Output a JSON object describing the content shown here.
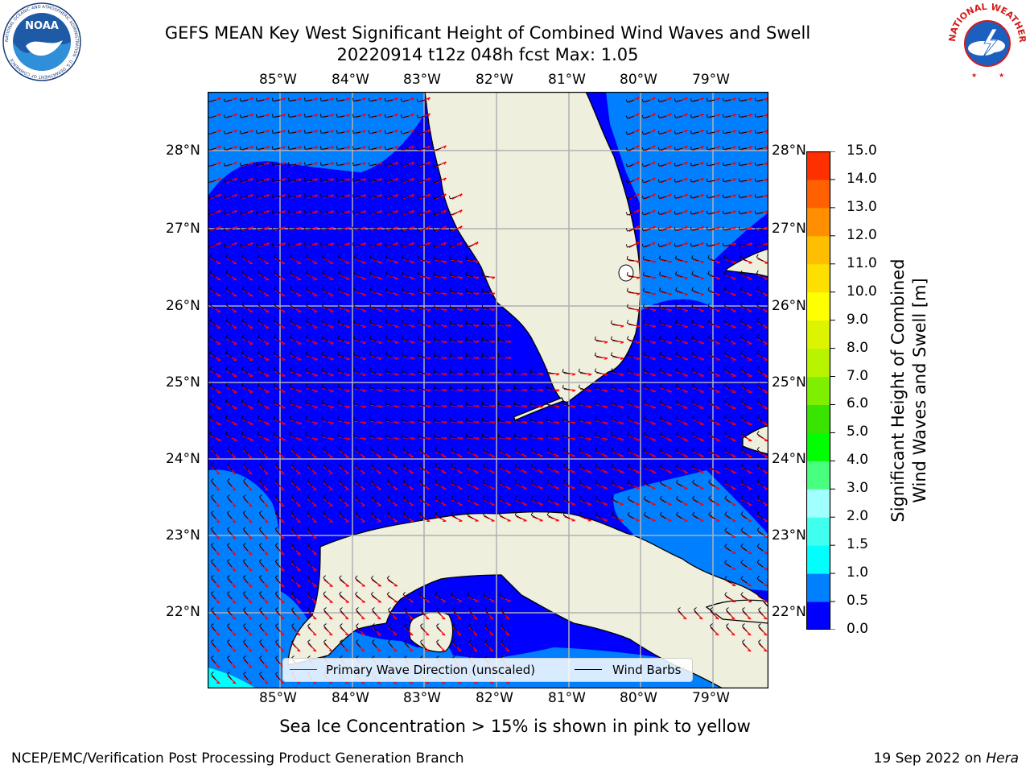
{
  "header": {
    "title_line1": "GEFS MEAN Key West Significant Height of Combined Wind Waves and Swell",
    "title_line2": "20220914 t12z 048h fcst   Max: 1.05"
  },
  "logos": {
    "left": "NOAA",
    "left_ring": "NATIONAL OCEANIC AND ATMOSPHERIC ADMINISTRATION · U.S. DEPARTMENT OF COMMERCE",
    "right_ring": "NATIONAL WEATHER SERVICE"
  },
  "map": {
    "lon_labels": [
      "85°W",
      "84°W",
      "83°W",
      "82°W",
      "81°W",
      "80°W",
      "79°W"
    ],
    "lat_labels": [
      "28°N",
      "27°N",
      "26°N",
      "25°N",
      "24°N",
      "23°N",
      "22°N"
    ],
    "extent": {
      "lon_min": -86.0,
      "lon_max": -78.25,
      "lat_min": 21.0,
      "lat_max": 28.75
    },
    "colors": {
      "ocean_low": "#0000ff",
      "ocean_mid": "#0080ff",
      "ocean_high": "#00ffff",
      "land": "#efefde",
      "wave_arrow": "#ff0000",
      "barb": "#000000",
      "grid": "#b0b0b0"
    }
  },
  "legend": {
    "primary_wave": "Primary Wave Direction (unscaled)",
    "wind_barbs": "Wind Barbs"
  },
  "colorbar": {
    "title_line1": "Significant Height of Combined",
    "title_line2": "Wind Waves and Swell [m]",
    "ticks": [
      "15.0",
      "14.0",
      "13.0",
      "12.0",
      "11.0",
      "10.0",
      "9.0",
      "8.0",
      "7.0",
      "6.0",
      "5.0",
      "4.0",
      "3.0",
      "2.0",
      "1.5",
      "1.0",
      "0.5",
      "0.0"
    ],
    "colors": [
      "#0000ff",
      "#0080ff",
      "#00ffff",
      "#40ffef",
      "#a0ffff",
      "#49ff7f",
      "#00ff00",
      "#39e400",
      "#7fef00",
      "#b8f400",
      "#dcf400",
      "#ffff00",
      "#ffdf00",
      "#ffbf00",
      "#ff8f00",
      "#ff6000",
      "#ff3000"
    ]
  },
  "note": "Sea Ice Concentration > 15% is shown in pink to yellow",
  "footer": {
    "left": "NCEP/EMC/Verification Post Processing Product Generation Branch",
    "right_prefix": "19 Sep 2022 on ",
    "right_host": "Hera"
  }
}
